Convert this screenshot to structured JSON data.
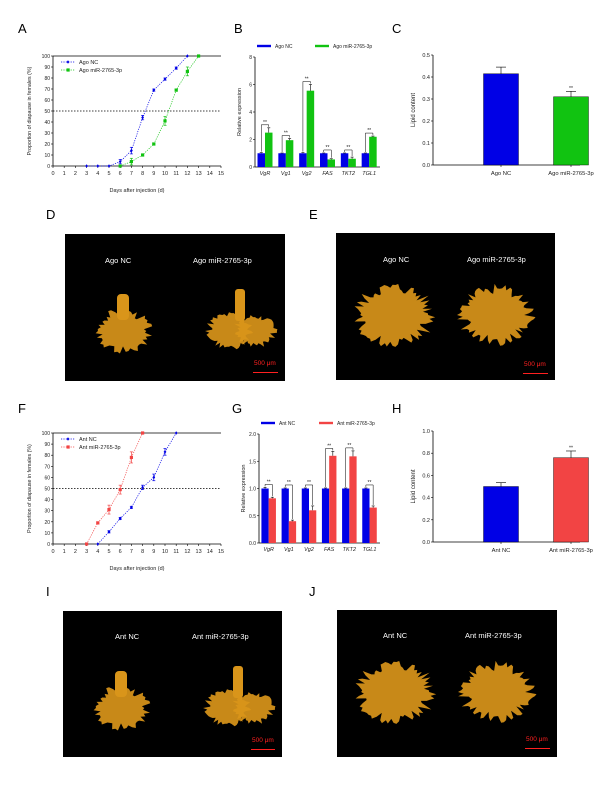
{
  "figure": {
    "panel_letters": [
      "A",
      "B",
      "C",
      "D",
      "E",
      "F",
      "G",
      "H",
      "I",
      "J"
    ]
  },
  "colors": {
    "nc": "#0000e6",
    "ago": "#11c311",
    "ant": "#f24444",
    "tissue": "#d9951a",
    "scale_red": "#ff2020"
  },
  "chart_data": [
    {
      "panel": "A",
      "type": "line",
      "title": "",
      "xlabel": "Days after injection (d)",
      "ylabel": "Proportion of diapause in females (%)",
      "xlim": [
        0,
        15
      ],
      "ylim": [
        0,
        100
      ],
      "xticks": [
        "0",
        "1",
        "2",
        "3",
        "4",
        "5",
        "6",
        "7",
        "8",
        "9",
        "10",
        "11",
        "12",
        "13",
        "14",
        "15"
      ],
      "yticks": [
        "0",
        "10",
        "20",
        "30",
        "40",
        "50",
        "60",
        "70",
        "80",
        "90",
        "100"
      ],
      "reference_line": 50,
      "legend": "top-left",
      "series": [
        {
          "name": "Ago NC",
          "color_key": "nc",
          "marker": "diamond",
          "x": [
            3,
            4,
            5,
            6,
            7,
            8,
            9,
            10,
            11,
            12
          ],
          "y": [
            0,
            0,
            0,
            4,
            14,
            44,
            69,
            79,
            89,
            100
          ],
          "err": [
            0,
            0,
            0,
            2,
            3,
            2,
            1,
            1,
            1,
            0
          ]
        },
        {
          "name": "Ago miR-2765-3p",
          "color_key": "ago",
          "marker": "square",
          "x": [
            6,
            7,
            8,
            9,
            10,
            11,
            12,
            13
          ],
          "y": [
            0,
            4,
            10,
            20,
            41,
            69,
            86,
            100
          ],
          "err": [
            0,
            3,
            1,
            1,
            4,
            1,
            4,
            0
          ]
        }
      ]
    },
    {
      "panel": "B",
      "type": "bar",
      "xlabel": "",
      "ylabel": "Relative expression",
      "ylim": [
        0,
        8
      ],
      "yticks": [
        "0",
        "2",
        "4",
        "6",
        "8"
      ],
      "legend": "top",
      "categories": [
        "VgR",
        "Vg1",
        "Vg2",
        "FAS",
        "TKT2",
        "TGL1"
      ],
      "significance": [
        "**",
        "**",
        "**",
        "**",
        "**",
        "**"
      ],
      "series": [
        {
          "name": "Ago NC",
          "color_key": "nc",
          "values": [
            1.0,
            1.0,
            1.0,
            1.0,
            1.0,
            1.0
          ],
          "err": [
            0.05,
            0.02,
            0.05,
            0.02,
            0.02,
            0.02
          ]
        },
        {
          "name": "Ago miR-2765-3p",
          "color_key": "ago",
          "values": [
            2.5,
            1.95,
            5.55,
            0.55,
            0.6,
            2.2
          ],
          "err": [
            0.35,
            0.12,
            0.45,
            0.05,
            0.12,
            0.05
          ]
        }
      ]
    },
    {
      "panel": "C",
      "type": "bar",
      "ylabel": "Lipid content",
      "ylim": [
        0,
        0.5
      ],
      "yticks": [
        "0.0",
        "0.1",
        "0.2",
        "0.3",
        "0.4",
        "0.5"
      ],
      "categories": [
        "Ago NC",
        "Ago miR-2765-3p"
      ],
      "values": [
        0.415,
        0.31
      ],
      "err": [
        0.03,
        0.025
      ],
      "colors": [
        "nc",
        "ago"
      ],
      "significance": [
        "",
        "**"
      ]
    },
    {
      "panel": "F",
      "type": "line",
      "xlabel": "Days after injection (d)",
      "ylabel": "Proportion of diapause in females (%)",
      "xlim": [
        0,
        15
      ],
      "ylim": [
        0,
        100
      ],
      "xticks": [
        "0",
        "1",
        "2",
        "3",
        "4",
        "5",
        "6",
        "7",
        "8",
        "9",
        "10",
        "11",
        "12",
        "13",
        "14",
        "15"
      ],
      "yticks": [
        "0",
        "10",
        "20",
        "30",
        "40",
        "50",
        "60",
        "70",
        "80",
        "90",
        "100"
      ],
      "reference_line": 50,
      "legend": "top-left",
      "series": [
        {
          "name": "Ant NC",
          "color_key": "nc",
          "marker": "diamond",
          "x": [
            4,
            5,
            6,
            7,
            8,
            9,
            10,
            11
          ],
          "y": [
            0,
            11,
            23,
            33,
            51,
            60,
            83,
            100
          ],
          "err": [
            0,
            1,
            1,
            1,
            2,
            3,
            3,
            0
          ]
        },
        {
          "name": "Ant miR-2765-3p",
          "color_key": "ant",
          "marker": "square",
          "x": [
            3,
            4,
            5,
            6,
            7,
            8
          ],
          "y": [
            0,
            19,
            31,
            49,
            78,
            100
          ],
          "err": [
            0,
            1,
            4,
            4,
            5,
            0
          ]
        }
      ]
    },
    {
      "panel": "G",
      "type": "bar",
      "ylabel": "Relative expression",
      "ylim": [
        0,
        2.0
      ],
      "yticks": [
        "0.0",
        "0.5",
        "1.0",
        "1.5",
        "2.0"
      ],
      "legend": "top",
      "categories": [
        "VgR",
        "Vg1",
        "Vg2",
        "FAS",
        "TKT2",
        "TGL1"
      ],
      "significance": [
        "**",
        "**",
        "**",
        "**",
        "**",
        "**"
      ],
      "series": [
        {
          "name": "Ant NC",
          "color_key": "nc",
          "values": [
            1.0,
            1.0,
            1.0,
            1.0,
            1.0,
            1.0
          ],
          "err": [
            0.02,
            0.01,
            0.01,
            0.01,
            0.01,
            0.01
          ]
        },
        {
          "name": "Ant miR-2765-3p",
          "color_key": "ant",
          "values": [
            0.82,
            0.4,
            0.6,
            1.6,
            1.59,
            0.65
          ],
          "err": [
            0.02,
            0.02,
            0.08,
            0.08,
            0.1,
            0.03
          ]
        }
      ]
    },
    {
      "panel": "H",
      "type": "bar",
      "ylabel": "Lipid content",
      "ylim": [
        0,
        1.0
      ],
      "yticks": [
        "0.0",
        "0.2",
        "0.4",
        "0.6",
        "0.8",
        "1.0"
      ],
      "categories": [
        "Ant NC",
        "Ant miR-2765-3p"
      ],
      "values": [
        0.5,
        0.76
      ],
      "err": [
        0.035,
        0.06
      ],
      "colors": [
        "nc",
        "ant"
      ],
      "significance": [
        "",
        "**"
      ]
    }
  ],
  "photos": {
    "D": {
      "left_label": "Ago NC",
      "right_label": "Ago miR-2765-3p",
      "scale": "500 μm"
    },
    "E": {
      "left_label": "Ago NC",
      "right_label": "Ago miR-2765-3p",
      "scale": "500 μm"
    },
    "I": {
      "left_label": "Ant NC",
      "right_label": "Ant miR-2765-3p",
      "scale": "500 μm"
    },
    "J": {
      "left_label": "Ant NC",
      "right_label": "Ant miR-2765-3p",
      "scale": "500 μm"
    }
  }
}
